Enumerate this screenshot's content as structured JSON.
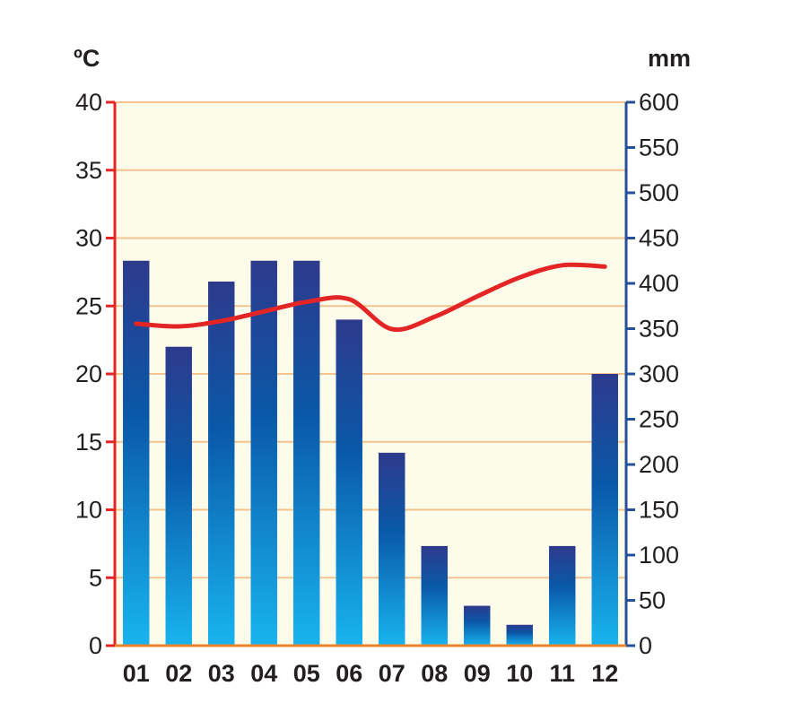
{
  "chart_data": {
    "type": "bar",
    "title": "",
    "categories": [
      "01",
      "02",
      "03",
      "04",
      "05",
      "06",
      "07",
      "08",
      "09",
      "10",
      "11",
      "12"
    ],
    "left_axis": {
      "unit": "ºC",
      "ylim": [
        0,
        40
      ],
      "ticks": [
        "0",
        "5",
        "10",
        "15",
        "20",
        "25",
        "30",
        "35",
        "40"
      ]
    },
    "right_axis": {
      "unit": "mm",
      "ylim": [
        0,
        600
      ],
      "ticks": [
        "0",
        "50",
        "100",
        "150",
        "200",
        "250",
        "300",
        "350",
        "400",
        "450",
        "500",
        "550",
        "600"
      ]
    },
    "series": [
      {
        "type": "bar",
        "axis": "right",
        "values": [
          425,
          330,
          402,
          425,
          425,
          360,
          213,
          110,
          44,
          23,
          110,
          300
        ]
      },
      {
        "type": "line",
        "axis": "left",
        "values": [
          23.7,
          23.5,
          23.9,
          24.6,
          25.3,
          25.5,
          23.3,
          24.2,
          25.7,
          27.1,
          28.0,
          27.9
        ]
      }
    ],
    "grid": true,
    "legend": "none",
    "colors": {
      "bar_top": "#2e3a8c",
      "bar_mid": "#0a58a8",
      "bar_bottom": "#18b4f0",
      "line": "#e32526",
      "left_axis": "#e32526",
      "right_axis": "#27509b",
      "grid": "#f5c38f",
      "plot_bg": "#fdfbe9",
      "baseline": "#e8842c"
    }
  }
}
